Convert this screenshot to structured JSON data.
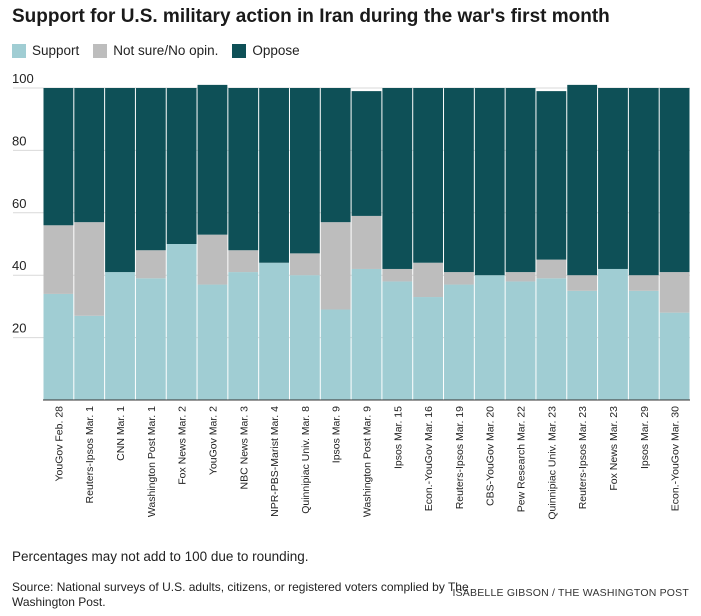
{
  "title": "Support for U.S. military action in Iran during the war's first month",
  "legend": [
    {
      "label": "Support",
      "color": "#a0cdd3"
    },
    {
      "label": "Not sure/No opin.",
      "color": "#bdbdbd"
    },
    {
      "label": "Oppose",
      "color": "#0e5057"
    }
  ],
  "note": "Percentages may not add to 100 due to rounding.",
  "source": "Source: National surveys of U.S. adults, citizens, or registered voters complied by The Washington Post.",
  "credit": "ISABELLE GIBSON / THE WASHINGTON POST",
  "chart_data": {
    "type": "bar",
    "stacked": true,
    "categories": [
      "YouGov Feb. 28",
      "Reuters-Ipsos Mar. 1",
      "CNN Mar. 1",
      "Washington Post Mar. 1",
      "Fox News Mar. 2",
      "YouGov Mar. 2",
      "NBC News Mar. 3",
      "NPR-PBS-Marist Mar. 4",
      "Quinnipiac Univ. Mar. 8",
      "Ipsos Mar. 9",
      "Washington Post Mar. 9",
      "Ipsos Mar. 15",
      "Econ.-YouGov Mar. 16",
      "Reuters-Ipsos Mar. 19",
      "CBS-YouGov Mar. 20",
      "Pew Research Mar. 22",
      "Quinnipiac Univ. Mar. 23",
      "Reuters-Ipsos Mar. 23",
      "Fox News Mar. 23",
      "Ipsos Mar. 29",
      "Econ.-YouGov Mar. 30"
    ],
    "series": [
      {
        "name": "Support",
        "values": [
          34,
          27,
          41,
          39,
          50,
          37,
          41,
          44,
          40,
          29,
          42,
          38,
          33,
          37,
          40,
          38,
          39,
          35,
          42,
          35,
          28
        ]
      },
      {
        "name": "Not sure/No opin.",
        "values": [
          22,
          30,
          0,
          9,
          0,
          16,
          7,
          0,
          7,
          28,
          17,
          4,
          11,
          4,
          0,
          3,
          6,
          5,
          0,
          5,
          13
        ]
      },
      {
        "name": "Oppose",
        "values": [
          44,
          43,
          59,
          52,
          50,
          48,
          52,
          56,
          53,
          43,
          40,
          58,
          56,
          59,
          60,
          59,
          54,
          61,
          58,
          60,
          59
        ]
      }
    ],
    "yticks": [
      20,
      40,
      60,
      80,
      100
    ],
    "ylim": [
      0,
      100
    ],
    "grid": true
  }
}
